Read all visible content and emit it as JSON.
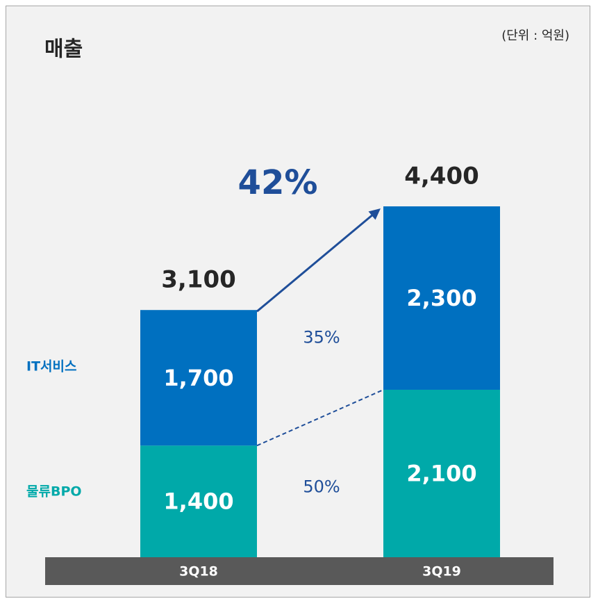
{
  "chart_data": {
    "type": "bar",
    "stacked": true,
    "title": "매출",
    "unit_note": "(단위 : 억원)",
    "categories": [
      "3Q18",
      "3Q19"
    ],
    "series": [
      {
        "name": "물류BPO",
        "color": "#00a9a9",
        "values": [
          1400,
          2100
        ],
        "value_labels": [
          "1,400",
          "2,100"
        ],
        "growth_label": "50%"
      },
      {
        "name": "IT서비스",
        "color": "#0070c0",
        "values": [
          1700,
          2300
        ],
        "value_labels": [
          "1,700",
          "2,300"
        ],
        "growth_label": "35%"
      }
    ],
    "totals": [
      3100,
      4400
    ],
    "total_labels": [
      "3,100",
      "4,400"
    ],
    "total_growth_label": "42%",
    "axis_band_color": "#595959"
  }
}
